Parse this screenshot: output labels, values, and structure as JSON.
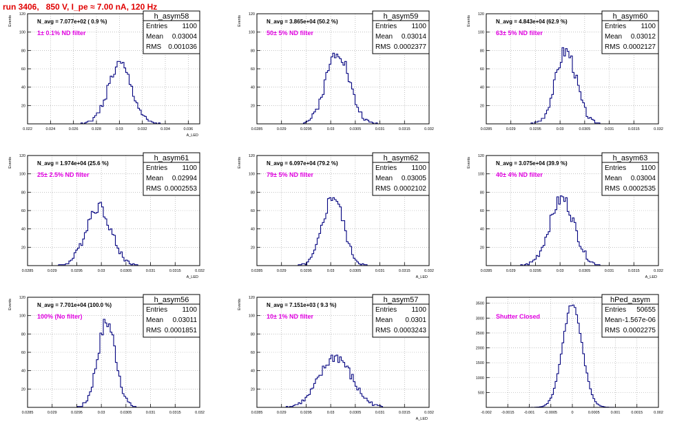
{
  "page_title": "run 3406,   850 V, I_pe ≈ 7.00 nA, 120 Hz",
  "colors": {
    "hist": "#00007f",
    "title": "#e00000",
    "filter_label": "#e000e0",
    "grid": "#9a9a9a"
  },
  "chart_data": [
    {
      "type": "bar",
      "name": "h_asym58",
      "stats": [
        [
          "Entries",
          "1100"
        ],
        [
          "Mean",
          "0.03004"
        ],
        [
          "RMS",
          "0.001036"
        ]
      ],
      "navg": "N_avg = 7.077e+02 ( 0.9 %)",
      "filter": "1± 0.1% ND filter",
      "ylabel": "Events",
      "xlabel": "A_LED",
      "xlim": [
        0.022,
        0.037
      ],
      "ylim": [
        0,
        120
      ],
      "xticks": [
        0.022,
        0.024,
        0.026,
        0.028,
        0.03,
        0.032,
        0.034,
        0.036
      ],
      "xticklabels": [
        "0.022",
        "0.024",
        "0.026",
        "0.028",
        "0.03",
        "0.032",
        "0.034",
        "0.036"
      ],
      "yticks": [
        20,
        40,
        60,
        80,
        100,
        120
      ],
      "mean": 0.03004,
      "sigma": 0.001036,
      "peak": 64,
      "nbins": 100,
      "seed": 1
    },
    {
      "type": "bar",
      "name": "h_asym59",
      "stats": [
        [
          "Entries",
          "1100"
        ],
        [
          "Mean",
          "0.03014"
        ],
        [
          "RMS",
          "0.0002377"
        ]
      ],
      "navg": "N_avg = 3.865e+04 (50.2 %)",
      "filter": "50± 5% ND filter",
      "ylabel": "Events",
      "xlabel": "",
      "xlim": [
        0.0285,
        0.032
      ],
      "ylim": [
        0,
        120
      ],
      "xticks": [
        0.0285,
        0.029,
        0.0295,
        0.03,
        0.0305,
        0.031,
        0.0315,
        0.032
      ],
      "xticklabels": [
        "0.0285",
        "0.029",
        "0.0295",
        "0.03",
        "0.0305",
        "0.031",
        "0.0315",
        "0.032"
      ],
      "yticks": [
        20,
        40,
        60,
        80,
        100,
        120
      ],
      "mean": 0.03014,
      "sigma": 0.0002377,
      "peak": 80,
      "nbins": 100,
      "seed": 2
    },
    {
      "type": "bar",
      "name": "h_asym60",
      "stats": [
        [
          "Entries",
          "1100"
        ],
        [
          "Mean",
          "0.03012"
        ],
        [
          "RMS",
          "0.0002127"
        ]
      ],
      "navg": "N_avg = 4.843e+04 (62.9 %)",
      "filter": "63± 5% ND filter",
      "ylabel": "Events",
      "xlabel": "",
      "xlim": [
        0.0285,
        0.032
      ],
      "ylim": [
        0,
        120
      ],
      "xticks": [
        0.0285,
        0.029,
        0.0295,
        0.03,
        0.0305,
        0.031,
        0.0315,
        0.032
      ],
      "xticklabels": [
        "0.0285",
        "0.029",
        "0.0295",
        "0.03",
        "0.0305",
        "0.031",
        "0.0315",
        "0.032"
      ],
      "yticks": [
        20,
        40,
        60,
        80,
        100,
        120
      ],
      "mean": 0.03012,
      "sigma": 0.0002127,
      "peak": 80,
      "nbins": 100,
      "seed": 3
    },
    {
      "type": "bar",
      "name": "h_asym61",
      "stats": [
        [
          "Entries",
          "1100"
        ],
        [
          "Mean",
          "0.02994"
        ],
        [
          "RMS",
          "0.0002553"
        ]
      ],
      "navg": "N_avg = 1.974e+04 (25.6 %)",
      "filter": "25± 2.5% ND filter",
      "ylabel": "Events",
      "xlabel": "A_LED",
      "xlim": [
        0.0285,
        0.032
      ],
      "ylim": [
        0,
        120
      ],
      "xticks": [
        0.0285,
        0.029,
        0.0295,
        0.03,
        0.0305,
        0.031,
        0.0315,
        0.032
      ],
      "xticklabels": [
        "0.0285",
        "0.029",
        "0.0295",
        "0.03",
        "0.0305",
        "0.031",
        "0.0315",
        "0.032"
      ],
      "yticks": [
        20,
        40,
        60,
        80,
        100,
        120
      ],
      "mean": 0.02994,
      "sigma": 0.0002553,
      "peak": 65,
      "nbins": 100,
      "seed": 4
    },
    {
      "type": "bar",
      "name": "h_asym62",
      "stats": [
        [
          "Entries",
          "1100"
        ],
        [
          "Mean",
          "0.03005"
        ],
        [
          "RMS",
          "0.0002102"
        ]
      ],
      "navg": "N_avg = 6.097e+04 (79.2 %)",
      "filter": "79± 5% ND filter",
      "ylabel": "Events",
      "xlabel": "A_LED",
      "xlim": [
        0.0285,
        0.032
      ],
      "ylim": [
        0,
        120
      ],
      "xticks": [
        0.0285,
        0.029,
        0.0295,
        0.03,
        0.0305,
        0.031,
        0.0315,
        0.032
      ],
      "xticklabels": [
        "0.0285",
        "0.029",
        "0.0295",
        "0.03",
        "0.0305",
        "0.031",
        "0.0315",
        "0.032"
      ],
      "yticks": [
        20,
        40,
        60,
        80,
        100,
        120
      ],
      "mean": 0.03005,
      "sigma": 0.0002102,
      "peak": 76,
      "nbins": 100,
      "seed": 5
    },
    {
      "type": "bar",
      "name": "h_asym63",
      "stats": [
        [
          "Entries",
          "1100"
        ],
        [
          "Mean",
          "0.03004"
        ],
        [
          "RMS",
          "0.0002535"
        ]
      ],
      "navg": "N_avg = 3.075e+04 (39.9 %)",
      "filter": "40± 4% ND filter",
      "ylabel": "Events",
      "xlabel": "A_LED",
      "xlim": [
        0.0285,
        0.032
      ],
      "ylim": [
        0,
        120
      ],
      "xticks": [
        0.0285,
        0.029,
        0.0295,
        0.03,
        0.0305,
        0.031,
        0.0315,
        0.032
      ],
      "xticklabels": [
        "0.0285",
        "0.029",
        "0.0295",
        "0.03",
        "0.0305",
        "0.031",
        "0.0315",
        "0.032"
      ],
      "yticks": [
        20,
        40,
        60,
        80,
        100,
        120
      ],
      "mean": 0.03004,
      "sigma": 0.0002535,
      "peak": 73,
      "nbins": 100,
      "seed": 6
    },
    {
      "type": "bar",
      "name": "h_asym56",
      "stats": [
        [
          "Entries",
          "1100"
        ],
        [
          "Mean",
          "0.03011"
        ],
        [
          "RMS",
          "0.0001851"
        ]
      ],
      "navg": "N_avg = 7.701e+04 (100.0 %)",
      "filter": "100% (No filter)",
      "ylabel": "Events",
      "xlabel": "",
      "xlim": [
        0.0285,
        0.032
      ],
      "ylim": [
        0,
        120
      ],
      "xticks": [
        0.0285,
        0.029,
        0.0295,
        0.03,
        0.0305,
        0.031,
        0.0315,
        0.032
      ],
      "xticklabels": [
        "0.0285",
        "0.029",
        "0.0295",
        "0.03",
        "0.0305",
        "0.031",
        "0.0315",
        "0.032"
      ],
      "yticks": [
        20,
        40,
        60,
        80,
        100,
        120
      ],
      "mean": 0.03011,
      "sigma": 0.0001851,
      "peak": 93,
      "nbins": 100,
      "seed": 7
    },
    {
      "type": "bar",
      "name": "h_asym57",
      "stats": [
        [
          "Entries",
          "1100"
        ],
        [
          "Mean",
          "0.0301"
        ],
        [
          "RMS",
          "0.0003243"
        ]
      ],
      "navg": "N_avg = 7.151e+03 ( 9.3 %)",
      "filter": "10± 1% ND filter",
      "ylabel": "Events",
      "xlabel": "A_LED",
      "xlim": [
        0.0285,
        0.032
      ],
      "ylim": [
        0,
        120
      ],
      "xticks": [
        0.0285,
        0.029,
        0.0295,
        0.03,
        0.0305,
        0.031,
        0.0315,
        0.032
      ],
      "xticklabels": [
        "0.0285",
        "0.029",
        "0.0295",
        "0.03",
        "0.0305",
        "0.031",
        "0.0315",
        "0.032"
      ],
      "yticks": [
        20,
        40,
        60,
        80,
        100,
        120
      ],
      "mean": 0.0301,
      "sigma": 0.0003243,
      "peak": 55,
      "nbins": 100,
      "seed": 8
    },
    {
      "type": "bar",
      "name": "hPed_asym",
      "stats": [
        [
          "Entries",
          "50655"
        ],
        [
          "Mean",
          "-1.567e-06"
        ],
        [
          "RMS",
          "0.0002275"
        ]
      ],
      "navg": "",
      "filter": "Shutter Closed",
      "ylabel": "",
      "xlabel": "",
      "xlim": [
        -0.002,
        0.002
      ],
      "ylim": [
        0,
        3700
      ],
      "xticks": [
        -0.002,
        -0.0015,
        -0.001,
        -0.0005,
        0,
        0.0005,
        0.001,
        0.0015,
        0.002
      ],
      "xticklabels": [
        "-0.002",
        "-0.0015",
        "-0.001",
        "-0.0005",
        "0",
        "0.0005",
        "0.001",
        "0.0015",
        "0.002"
      ],
      "yticks": [
        500,
        1000,
        1500,
        2000,
        2500,
        3000,
        3500
      ],
      "mean": -1.567e-06,
      "sigma": 0.0002275,
      "peak": 3460,
      "nbins": 100,
      "seed": 9
    }
  ]
}
